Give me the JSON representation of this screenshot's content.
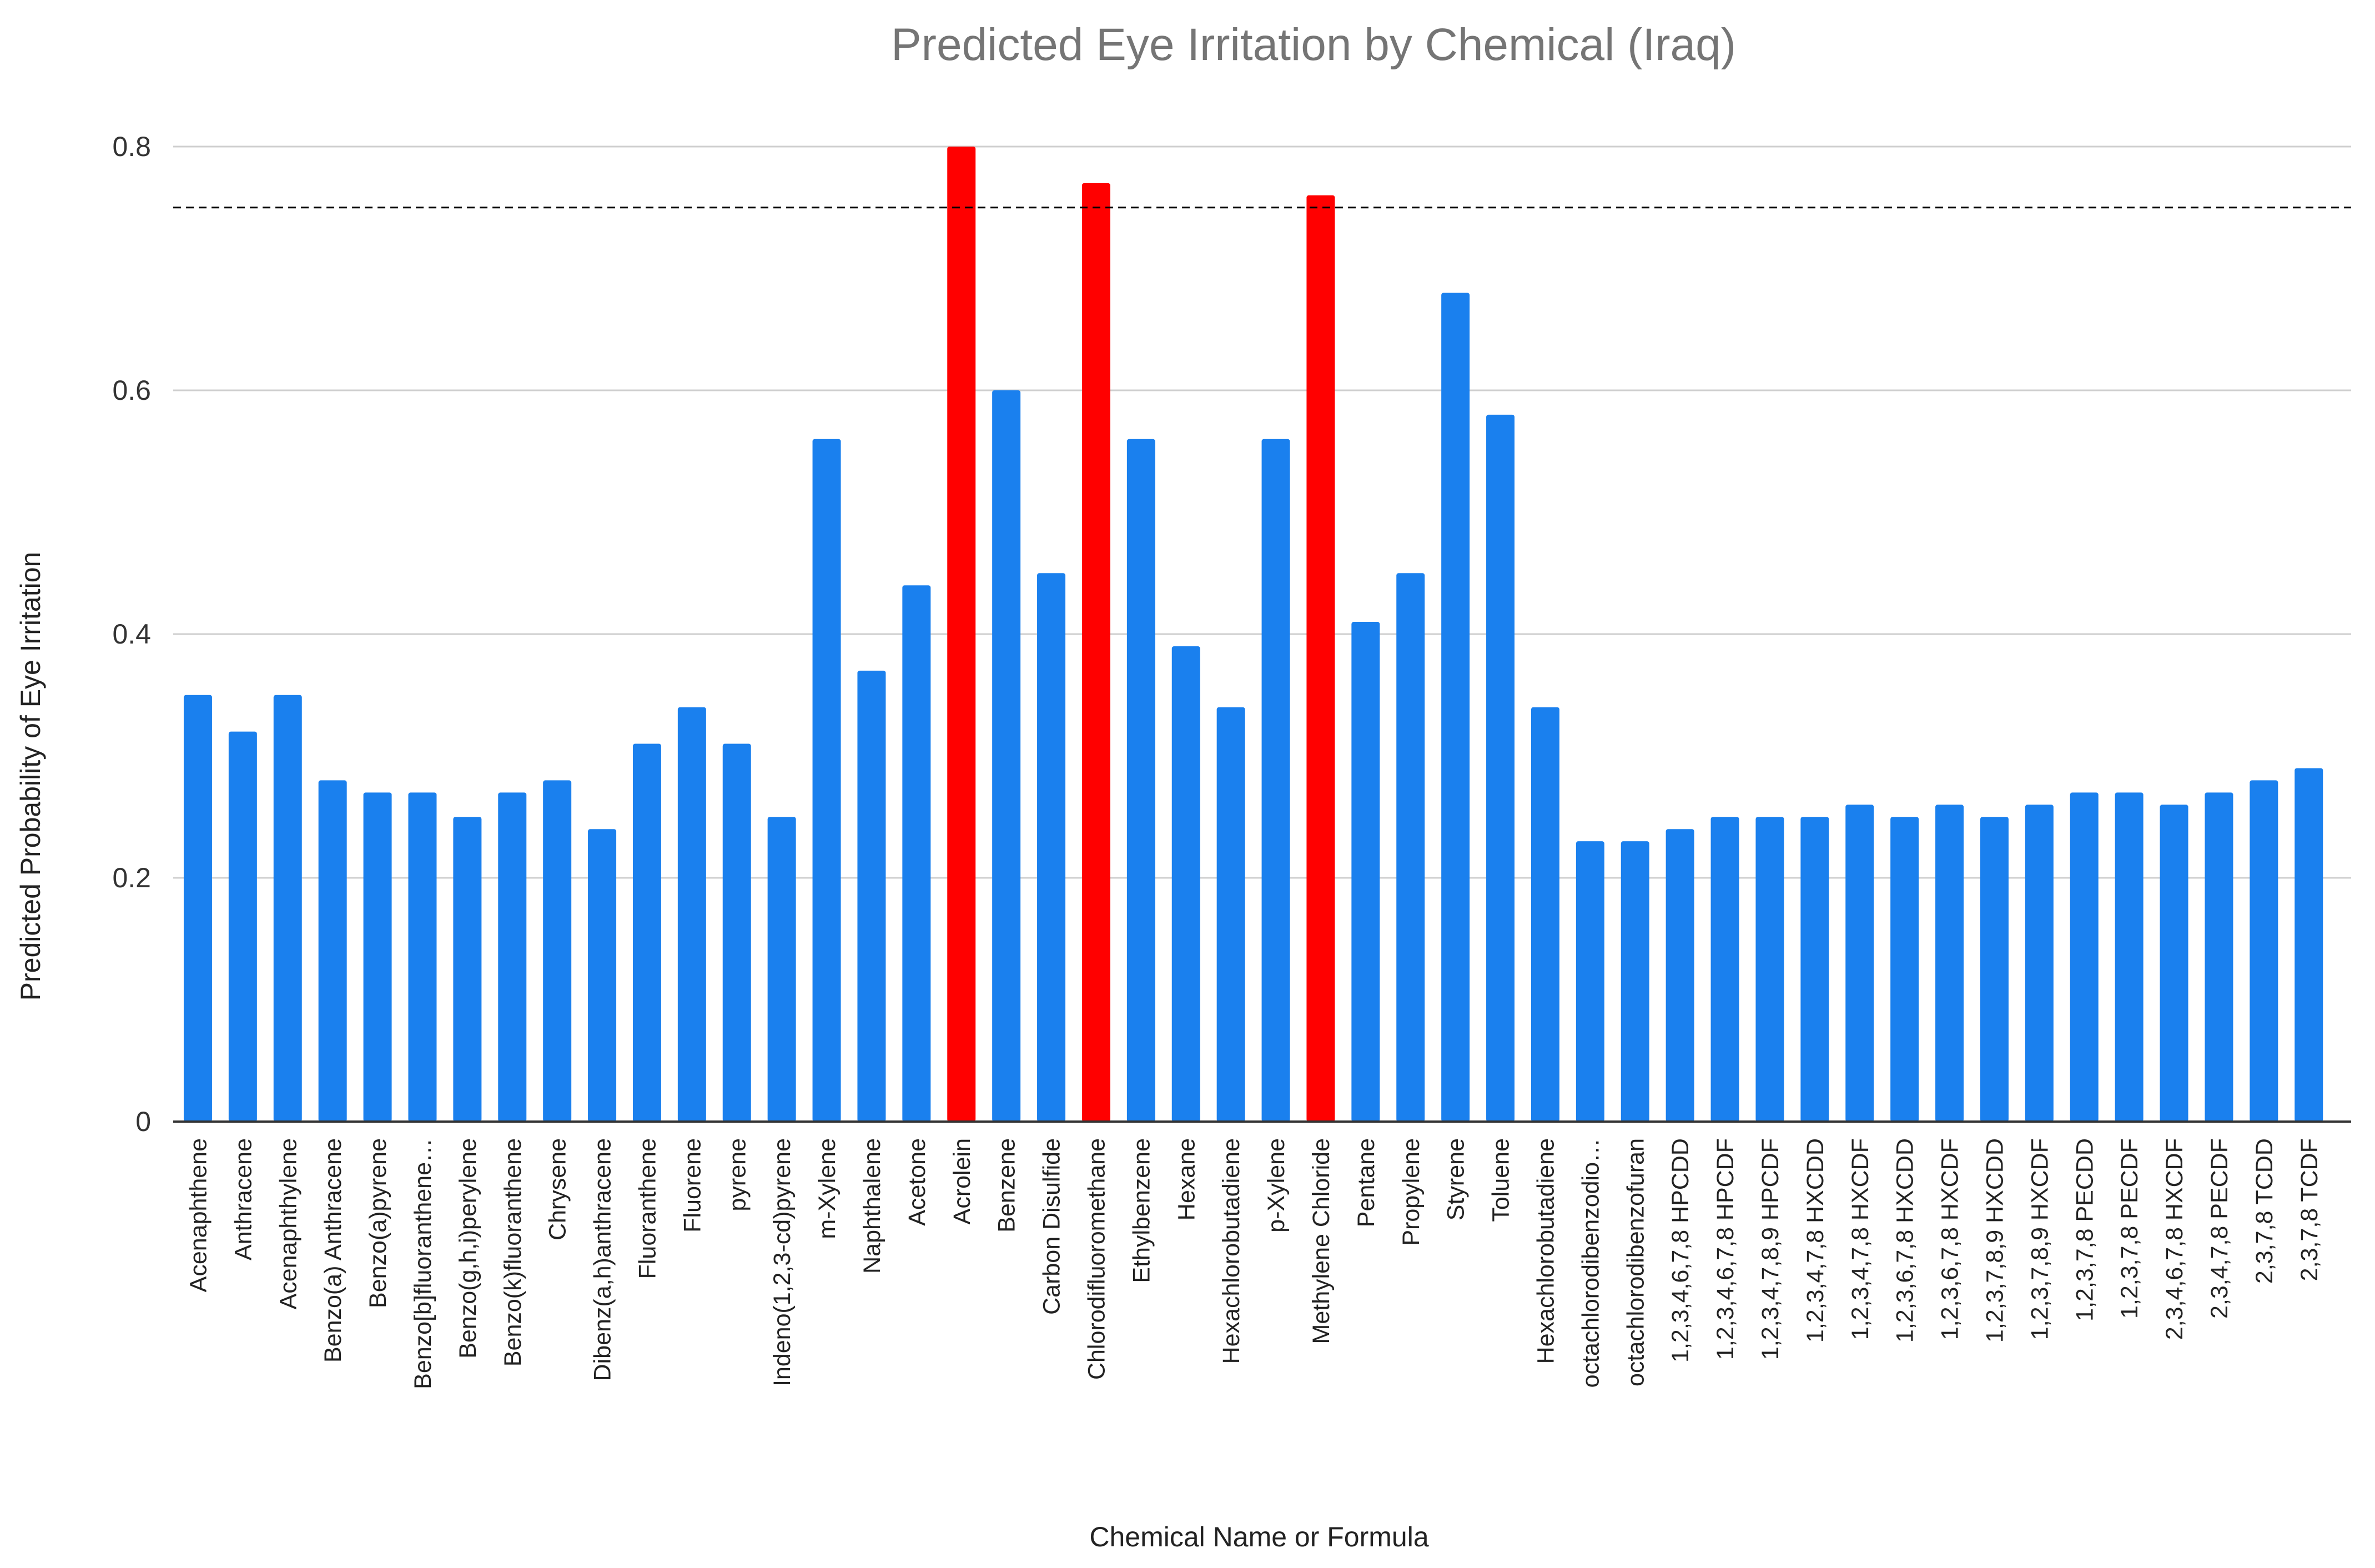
{
  "chart_data": {
    "type": "bar",
    "title": "Predicted Eye Irritation by Chemical (Iraq)",
    "xlabel": "Chemical Name or Formula",
    "ylabel": "Predicted Probability of Eye Irritation",
    "ylim": [
      0,
      0.8
    ],
    "yticks": [
      0,
      0.2,
      0.4,
      0.6,
      0.8
    ],
    "ytick_labels": [
      "0",
      "0.2",
      "0.4",
      "0.6",
      "0.8"
    ],
    "grid": true,
    "threshold": 0.75,
    "colors": {
      "default": "#1a80ee",
      "highlight": "#ff0000",
      "grid": "#cfcfcf",
      "threshold": "#000000"
    },
    "categories": [
      "Acenaphthene",
      "Anthracene",
      "Acenaphthylene",
      "Benzo(a) Anthracene",
      "Benzo(a)pyrene",
      "Benzo[b]fluoranthene…",
      "Benzo(g,h,i)perylene",
      "Benzo(k)fluoranthene",
      "Chrysene",
      "Dibenz(a,h)anthracene",
      "Fluoranthene",
      "Fluorene",
      "pyrene",
      "Indeno(1,2,3-cd)pyrene",
      "m-Xylene",
      "Naphthalene",
      "Acetone",
      "Acrolein",
      "Benzene",
      "Carbon Disulfide",
      "Chlorodifluoromethane",
      "Ethylbenzene",
      "Hexane",
      "Hexachlorobutadiene",
      "p-Xylene",
      "Methylene Chloride",
      "Pentane",
      "Propylene",
      "Styrene",
      "Toluene",
      "Hexachlorobutadiene",
      "octachlorodibenzodio…",
      "octachlorodibenzofuran",
      "1,2,3,4,6,7,8 HPCDD",
      "1,2,3,4,6,7,8 HPCDF",
      "1,2,3,4,7,8,9 HPCDF",
      "1,2,3,4,7,8 HXCDD",
      "1,2,3,4,7,8 HXCDF",
      "1,2,3,6,7,8 HXCDD",
      "1,2,3,6,7,8 HXCDF",
      "1,2,3,7,8,9 HXCDD",
      "1,2,3,7,8,9 HXCDF",
      "1,2,3,7,8 PECDD",
      "1,2,3,7,8 PECDF",
      "2,3,4,6,7,8 HXCDF",
      "2,3,4,7,8 PECDF",
      "2,3,7,8 TCDD",
      "2,3,7,8 TCDF"
    ],
    "values": [
      0.35,
      0.32,
      0.35,
      0.28,
      0.27,
      0.27,
      0.25,
      0.27,
      0.28,
      0.24,
      0.31,
      0.34,
      0.31,
      0.25,
      0.56,
      0.37,
      0.44,
      0.8,
      0.6,
      0.45,
      0.77,
      0.56,
      0.39,
      0.34,
      0.56,
      0.76,
      0.41,
      0.45,
      0.68,
      0.58,
      0.34,
      0.23,
      0.23,
      0.24,
      0.25,
      0.25,
      0.25,
      0.26,
      0.25,
      0.26,
      0.25,
      0.26,
      0.27,
      0.27,
      0.26,
      0.27,
      0.28,
      0.29
    ],
    "highlighted": [
      "Acrolein",
      "Chlorodifluoromethane",
      "Methylene Chloride"
    ]
  }
}
